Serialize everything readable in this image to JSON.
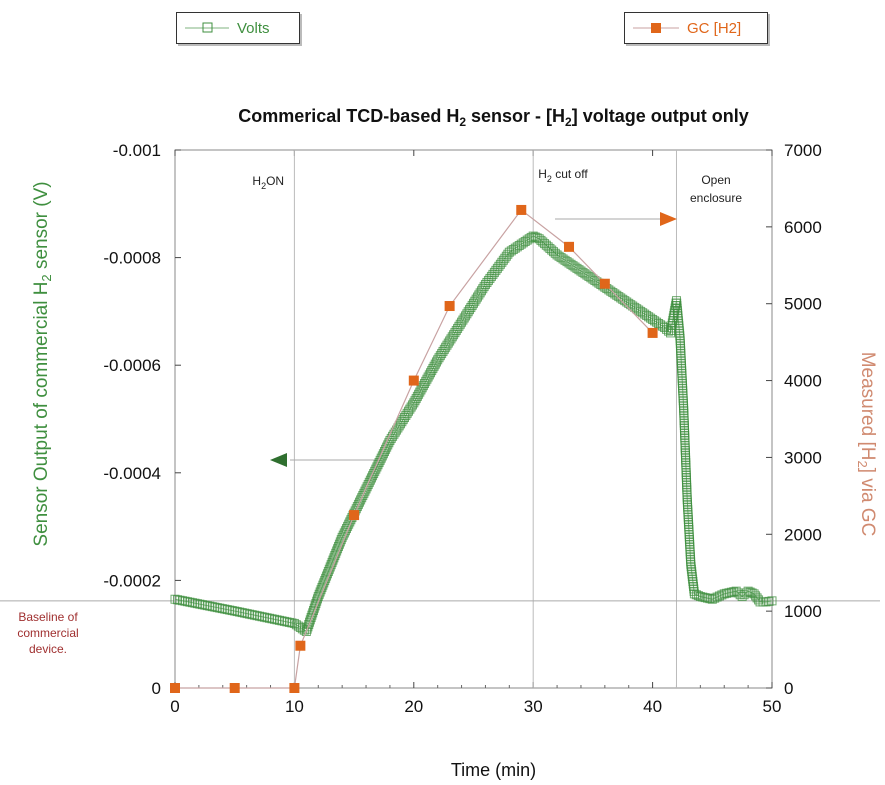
{
  "colors": {
    "volts": "#3f8f3f",
    "volts_marker_fill": "#7fb37f",
    "gc": "#e0661a",
    "gc_line": "#c8a2a2",
    "baseline_text": "#a03030",
    "right_axis_label": "#d08a70",
    "left_axis_label": "#3f8f3f"
  },
  "legend": {
    "volts_label": "Volts",
    "gc_label": "GC [H2]"
  },
  "chart_data": {
    "type": "scatter",
    "title_parts": [
      "Commerical TCD-based H",
      "2",
      " sensor - [H",
      "2",
      "] voltage output only"
    ],
    "xlabel": "Time (min)",
    "ylabel_left_parts": [
      "Sensor Output of commercial H",
      "2",
      " sensor (V)"
    ],
    "ylabel_right_parts": [
      "Measured [H",
      "2",
      "] via GC"
    ],
    "xlim": [
      0,
      50
    ],
    "ylim_left": [
      0,
      -0.001
    ],
    "ylim_right": [
      0,
      7000
    ],
    "x_ticks": [
      0,
      10,
      20,
      30,
      40,
      50
    ],
    "y_left_ticks": [
      "0",
      "-0.0002",
      "-0.0004",
      "-0.0006",
      "-0.0008",
      "-0.001"
    ],
    "y_left_tick_values": [
      0,
      -0.0002,
      -0.0004,
      -0.0006,
      -0.0008,
      -0.001
    ],
    "y_right_ticks": [
      0,
      1000,
      2000,
      3000,
      4000,
      5000,
      6000,
      7000
    ],
    "grid": false,
    "legend_placement": "top",
    "vertical_markers": [
      10,
      30,
      42
    ],
    "baseline_volts": -0.000162,
    "annotations": {
      "h2_on": [
        "H",
        "2",
        "ON"
      ],
      "h2_cutoff": [
        "H",
        "2",
        " cut off"
      ],
      "open_enclosure": [
        "Open",
        "enclosure"
      ],
      "baseline": [
        "Baseline of",
        "commercial",
        "device."
      ]
    },
    "series": [
      {
        "name": "Volts",
        "axis": "left",
        "x": [
          0,
          5,
          10,
          11,
          12,
          14,
          16,
          18,
          20,
          22,
          24,
          26,
          28,
          30,
          30.5,
          32,
          34,
          36,
          38,
          40,
          41,
          41.5,
          42,
          42.3,
          42.6,
          42.9,
          43.2,
          43.5,
          44,
          45,
          46,
          47,
          47.5,
          48,
          48.5,
          49,
          49.5,
          50
        ],
        "values": [
          -0.000165,
          -0.000143,
          -0.00012,
          -0.000105,
          -0.00017,
          -0.00028,
          -0.00037,
          -0.00046,
          -0.00053,
          -0.00061,
          -0.00068,
          -0.00075,
          -0.00081,
          -0.00084,
          -0.000835,
          -0.000805,
          -0.000775,
          -0.000745,
          -0.000715,
          -0.000685,
          -0.00067,
          -0.00066,
          -0.00072,
          -0.00065,
          -0.00052,
          -0.00035,
          -0.00023,
          -0.000175,
          -0.00017,
          -0.000165,
          -0.000175,
          -0.00018,
          -0.00017,
          -0.00018,
          -0.000175,
          -0.00016,
          -0.00016,
          -0.000162
        ]
      },
      {
        "name": "GC [H2]",
        "axis": "right",
        "x": [
          0,
          5,
          10,
          10.5,
          15,
          20,
          23,
          29,
          33,
          36,
          40
        ],
        "values": [
          0,
          0,
          0,
          550,
          2250,
          4000,
          4970,
          6220,
          5740,
          5260,
          4620
        ]
      }
    ]
  }
}
